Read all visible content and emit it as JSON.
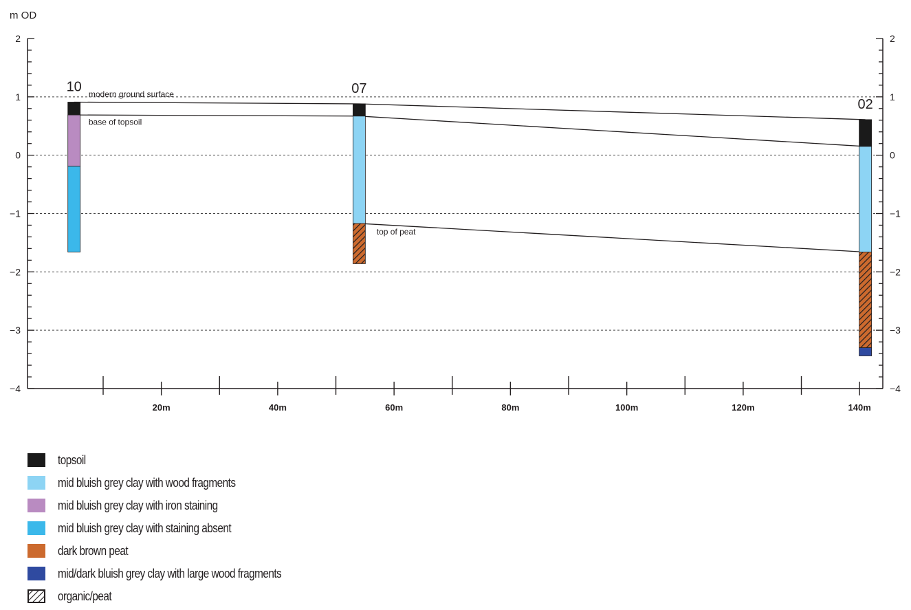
{
  "figure": {
    "y_axis_title": "m OD",
    "y_ticks": [
      {
        "value": 2,
        "label": "2"
      },
      {
        "value": 1,
        "label": "1"
      },
      {
        "value": 0,
        "label": "0"
      },
      {
        "value": -1,
        "label": "−1"
      },
      {
        "value": -2,
        "label": "−2"
      },
      {
        "value": -3,
        "label": "−3"
      },
      {
        "value": -4,
        "label": "−4"
      }
    ],
    "y_range": [
      -4,
      2
    ],
    "x_range": [
      -3,
      144
    ],
    "x_ticks": [
      {
        "value": 20,
        "label": "20m"
      },
      {
        "value": 40,
        "label": "40m"
      },
      {
        "value": 60,
        "label": "60m"
      },
      {
        "value": 80,
        "label": "80m"
      },
      {
        "value": 100,
        "label": "100m"
      },
      {
        "value": 120,
        "label": "120m"
      },
      {
        "value": 140,
        "label": "140m"
      }
    ],
    "x_minor_step": 10,
    "y_minor_step": 0.2,
    "gridlines_dashed_at": [
      1,
      0,
      -1,
      -2,
      -3
    ],
    "boreholes": [
      {
        "id": "10",
        "x": 5,
        "layers": [
          {
            "unit": "topsoil",
            "top": 0.91,
            "bottom": 0.69
          },
          {
            "unit": "clay_iron",
            "top": 0.69,
            "bottom": -0.19
          },
          {
            "unit": "clay_absent",
            "top": -0.19,
            "bottom": -1.66
          }
        ]
      },
      {
        "id": "07",
        "x": 54,
        "layers": [
          {
            "unit": "topsoil",
            "top": 0.88,
            "bottom": 0.67
          },
          {
            "unit": "clay_wood",
            "top": 0.67,
            "bottom": -1.17
          },
          {
            "unit": "peat",
            "top": -1.17,
            "bottom": -1.86
          }
        ]
      },
      {
        "id": "02",
        "x": 141,
        "layers": [
          {
            "unit": "topsoil",
            "top": 0.61,
            "bottom": 0.15
          },
          {
            "unit": "clay_wood",
            "top": 0.15,
            "bottom": -1.66
          },
          {
            "unit": "peat",
            "top": -1.66,
            "bottom": -3.3
          },
          {
            "unit": "clay_dark",
            "top": -3.3,
            "bottom": -3.44
          }
        ]
      }
    ],
    "correlation_lines": [
      {
        "name": "modern ground surface",
        "points": [
          [
            5,
            0.91
          ],
          [
            54,
            0.88
          ],
          [
            141,
            0.61
          ]
        ]
      },
      {
        "name": "base of topsoil",
        "points": [
          [
            5,
            0.69
          ],
          [
            54,
            0.67
          ],
          [
            141,
            0.15
          ]
        ]
      },
      {
        "name": "top of peat",
        "points": [
          [
            54,
            -1.17
          ],
          [
            141,
            -1.66
          ]
        ]
      }
    ],
    "annotations": [
      {
        "text": "modern ground surface",
        "x": 7.5,
        "y": 1.0
      },
      {
        "text": "base of topsoil",
        "x": 7.5,
        "y": 0.52
      },
      {
        "text": "top of peat",
        "x": 57,
        "y": -1.36
      }
    ],
    "colors": {
      "topsoil": "#1a1a1a",
      "clay_wood": "#8dd4f4",
      "clay_iron": "#b98bc1",
      "clay_absent": "#3bb8ea",
      "peat": "#cc6a2e",
      "clay_dark": "#2f4aa0"
    }
  },
  "legend": [
    {
      "key": "topsoil",
      "label": "topsoil",
      "color": "#1a1a1a"
    },
    {
      "key": "clay_wood",
      "label": "mid bluish grey clay with wood fragments",
      "color": "#8dd4f4"
    },
    {
      "key": "clay_iron",
      "label": "mid bluish grey clay with iron staining",
      "color": "#b98bc1"
    },
    {
      "key": "clay_absent",
      "label": "mid bluish grey clay with staining absent",
      "color": "#3bb8ea"
    },
    {
      "key": "peat",
      "label": "dark brown peat",
      "color": "#cc6a2e"
    },
    {
      "key": "clay_dark",
      "label": "mid/dark bluish grey clay with large wood fragments",
      "color": "#2f4aa0"
    },
    {
      "key": "organic",
      "label": "organic/peat",
      "color": "#ffffff",
      "icon": "hatch-icon"
    }
  ]
}
